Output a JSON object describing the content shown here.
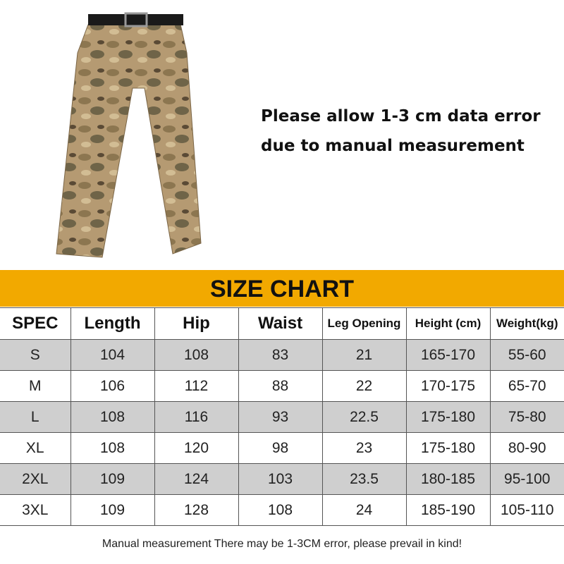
{
  "note": {
    "line1": "Please allow 1-3 cm data error",
    "line2": "due to manual measurement"
  },
  "banner": {
    "title": "SIZE CHART",
    "color": "#f2a900"
  },
  "table": {
    "headers": [
      "SPEC",
      "Length",
      "Hip",
      "Waist",
      "Leg Opening",
      "Height (cm)",
      "Weight(kg)"
    ],
    "rows": [
      [
        "S",
        "104",
        "108",
        "83",
        "21",
        "165-170",
        "55-60"
      ],
      [
        "M",
        "106",
        "112",
        "88",
        "22",
        "170-175",
        "65-70"
      ],
      [
        "L",
        "108",
        "116",
        "93",
        "22.5",
        "175-180",
        "75-80"
      ],
      [
        "XL",
        "108",
        "120",
        "98",
        "23",
        "175-180",
        "80-90"
      ],
      [
        "2XL",
        "109",
        "124",
        "103",
        "23.5",
        "180-185",
        "95-100"
      ],
      [
        "3XL",
        "109",
        "128",
        "108",
        "24",
        "185-190",
        "105-110"
      ]
    ]
  },
  "footer": "Manual measurement There may be 1-3CM error, please prevail in kind!"
}
